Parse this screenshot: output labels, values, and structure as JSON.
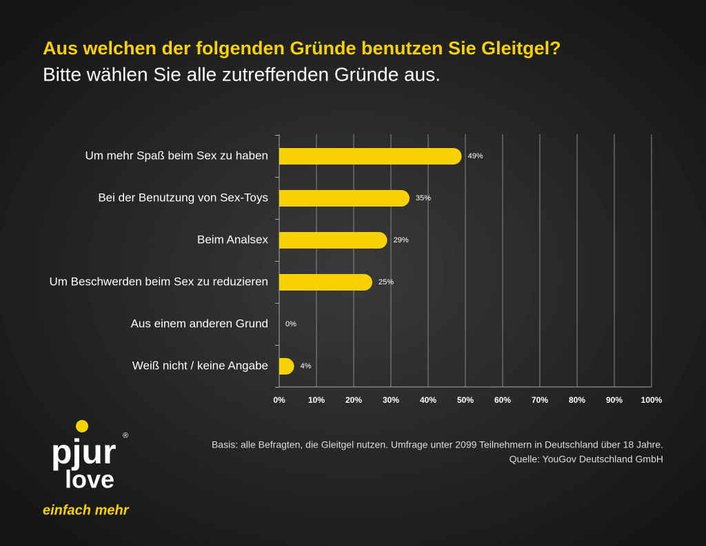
{
  "chart_data": {
    "type": "bar",
    "orientation": "horizontal",
    "title": "Aus welchen der folgenden Gründe benutzen Sie Gleitgel?",
    "subtitle": "Bitte wählen Sie alle zutreffenden Gründe aus.",
    "categories": [
      "Um mehr Spaß beim Sex zu haben",
      "Bei der Benutzung von Sex-Toys",
      "Beim Analsex",
      "Um Beschwerden beim Sex zu reduzieren",
      "Aus einem anderen Grund",
      "Weiß nicht / keine Angabe"
    ],
    "values": [
      49,
      35,
      29,
      25,
      0,
      4
    ],
    "value_labels": [
      "49%",
      "35%",
      "29%",
      "25%",
      "0%",
      "4%"
    ],
    "color": "#f7d200",
    "xlim": [
      0,
      100
    ],
    "xticks": [
      {
        "value": 0,
        "label": "0%"
      },
      {
        "value": 10,
        "label": "10%"
      },
      {
        "value": 20,
        "label": "20%"
      },
      {
        "value": 30,
        "label": "30%"
      },
      {
        "value": 40,
        "label": "40%"
      },
      {
        "value": 50,
        "label": "50%"
      },
      {
        "value": 60,
        "label": "60%"
      },
      {
        "value": 70,
        "label": "70%"
      },
      {
        "value": 80,
        "label": "80%"
      },
      {
        "value": 90,
        "label": "90%"
      },
      {
        "value": 100,
        "label": "100%"
      }
    ],
    "grid": true
  },
  "footnote": [
    "Basis: alle Befragten, die Gleitgel nutzen. Umfrage unter 2099 Teilnehmern in Deutschland über 18 Jahre.",
    "Quelle: YouGov Deutschland GmbH"
  ],
  "logo": {
    "brand": "pjur",
    "mark": "®",
    "line": "love",
    "slogan": "einfach mehr"
  }
}
